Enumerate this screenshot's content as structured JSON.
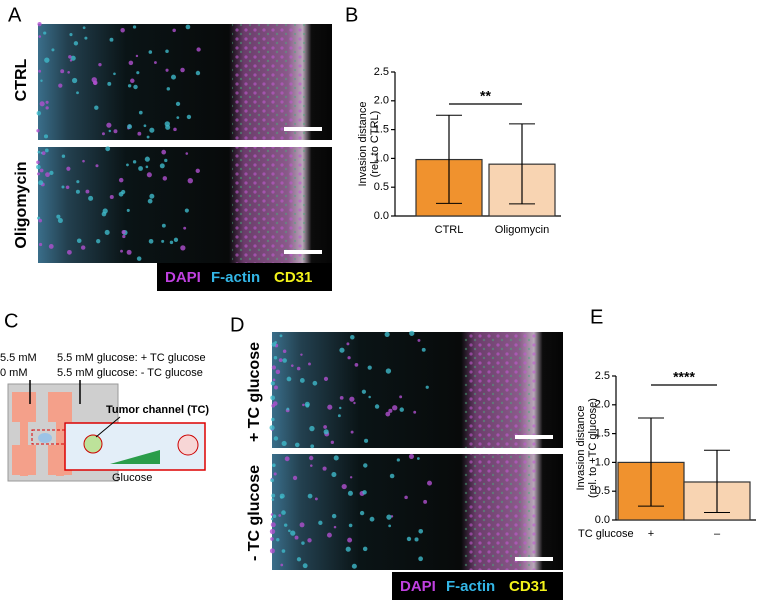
{
  "panels": {
    "a": "A",
    "b": "B",
    "c": "C",
    "d": "D",
    "e": "E"
  },
  "panel_a": {
    "rows": [
      "CTRL",
      "Oligomycin"
    ],
    "legend": [
      "DAPI",
      "F-actin",
      "CD31"
    ]
  },
  "panel_c": {
    "left_labels": [
      "5.5 mM",
      "0 mM"
    ],
    "right_labels": [
      "5.5 mM glucose: + TC glucose",
      "5.5 mM glucose: - TC glucose"
    ],
    "channel_label": "Tumor channel (TC)",
    "gradient_label": "Glucose"
  },
  "panel_d": {
    "rows": [
      "+ TC glucose",
      "- TC glucose"
    ],
    "legend": [
      "DAPI",
      "F-actin",
      "CD31"
    ]
  },
  "chart_data": [
    {
      "type": "bar",
      "y_label": [
        "Invasion distance",
        "(rel. to CTRL)"
      ],
      "categories": [
        "CTRL",
        "Oligomycin"
      ],
      "values": [
        0.98,
        0.9
      ],
      "error_range": [
        [
          0.22,
          1.75
        ],
        [
          0.21,
          1.6
        ]
      ],
      "colors": [
        "#f0922e",
        "#f8d4b2"
      ],
      "ylim": [
        0,
        2.5
      ],
      "yticks": [
        {
          "value": 0,
          "label": "0.0"
        },
        0.5,
        {
          "value": 1,
          "label": "1.0"
        },
        1.5,
        {
          "value": 2,
          "label": "2.0"
        },
        2.5
      ],
      "significance": "**"
    },
    {
      "type": "bar",
      "y_label": [
        "Invasion distance",
        "(rel. to +TC glucose)"
      ],
      "x_label": "TC glucose",
      "categories": [
        "+",
        "–"
      ],
      "values": [
        1.0,
        0.66
      ],
      "error_range": [
        [
          0.24,
          1.77
        ],
        [
          0.13,
          1.21
        ]
      ],
      "colors": [
        "#f0922e",
        "#f8d4b2"
      ],
      "ylim": [
        0,
        2.5
      ],
      "yticks": [
        {
          "value": 0,
          "label": "0.0"
        },
        0.5,
        {
          "value": 1,
          "label": "1.0"
        },
        1.5,
        {
          "value": 2,
          "label": "2.0"
        },
        2.5
      ],
      "significance": "****"
    }
  ]
}
